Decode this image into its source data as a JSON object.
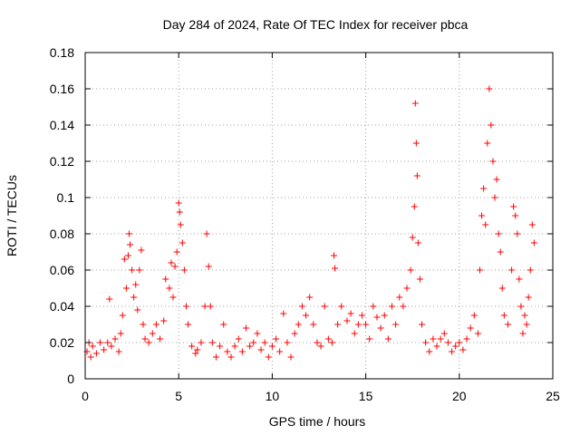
{
  "chart_data": {
    "type": "scatter",
    "title": "Day 284 of 2024, Rate Of TEC Index for receiver pbca",
    "xlabel": "GPS time / hours",
    "ylabel": "ROTI / TECUs",
    "xlim": [
      0,
      25
    ],
    "ylim": [
      0,
      0.18
    ],
    "xticks": [
      0,
      5,
      10,
      15,
      20,
      25
    ],
    "yticks": [
      0,
      0.02,
      0.04,
      0.06,
      0.08,
      0.1,
      0.12,
      0.14,
      0.16,
      0.18
    ],
    "xtick_labels": [
      "0",
      "5",
      "10",
      "15",
      "20",
      "25"
    ],
    "ytick_labels": [
      "0",
      "0.02",
      "0.04",
      "0.06",
      "0.08",
      "0.1",
      "0.12",
      "0.14",
      "0.16",
      "0.18"
    ],
    "grid": true,
    "marker": "+",
    "colors": {
      "points": "#ff0000",
      "grid": "#a0a0a0",
      "axes": "#000000"
    },
    "series": [
      {
        "name": "ROTI",
        "points": [
          [
            0.1,
            0.015
          ],
          [
            0.2,
            0.02
          ],
          [
            0.3,
            0.012
          ],
          [
            0.4,
            0.018
          ],
          [
            0.6,
            0.014
          ],
          [
            0.8,
            0.02
          ],
          [
            1.0,
            0.016
          ],
          [
            1.2,
            0.02
          ],
          [
            1.3,
            0.044
          ],
          [
            1.4,
            0.018
          ],
          [
            1.6,
            0.022
          ],
          [
            1.8,
            0.015
          ],
          [
            1.9,
            0.025
          ],
          [
            2.0,
            0.035
          ],
          [
            2.1,
            0.066
          ],
          [
            2.2,
            0.05
          ],
          [
            2.3,
            0.068
          ],
          [
            2.35,
            0.08
          ],
          [
            2.4,
            0.074
          ],
          [
            2.5,
            0.06
          ],
          [
            2.6,
            0.045
          ],
          [
            2.7,
            0.052
          ],
          [
            2.8,
            0.038
          ],
          [
            2.9,
            0.06
          ],
          [
            3.0,
            0.071
          ],
          [
            3.1,
            0.03
          ],
          [
            3.2,
            0.022
          ],
          [
            3.4,
            0.02
          ],
          [
            3.6,
            0.025
          ],
          [
            3.8,
            0.03
          ],
          [
            4.0,
            0.022
          ],
          [
            4.2,
            0.032
          ],
          [
            4.3,
            0.055
          ],
          [
            4.5,
            0.05
          ],
          [
            4.6,
            0.064
          ],
          [
            4.7,
            0.045
          ],
          [
            4.8,
            0.062
          ],
          [
            4.9,
            0.07
          ],
          [
            5.0,
            0.097
          ],
          [
            5.05,
            0.092
          ],
          [
            5.1,
            0.085
          ],
          [
            5.2,
            0.075
          ],
          [
            5.3,
            0.06
          ],
          [
            5.4,
            0.04
          ],
          [
            5.5,
            0.03
          ],
          [
            5.7,
            0.018
          ],
          [
            5.9,
            0.014
          ],
          [
            6.0,
            0.016
          ],
          [
            6.2,
            0.02
          ],
          [
            6.4,
            0.04
          ],
          [
            6.5,
            0.08
          ],
          [
            6.6,
            0.062
          ],
          [
            6.7,
            0.04
          ],
          [
            6.8,
            0.02
          ],
          [
            7.0,
            0.012
          ],
          [
            7.2,
            0.018
          ],
          [
            7.4,
            0.03
          ],
          [
            7.6,
            0.015
          ],
          [
            7.8,
            0.012
          ],
          [
            8.0,
            0.018
          ],
          [
            8.2,
            0.022
          ],
          [
            8.4,
            0.015
          ],
          [
            8.6,
            0.028
          ],
          [
            8.8,
            0.018
          ],
          [
            9.0,
            0.02
          ],
          [
            9.2,
            0.025
          ],
          [
            9.4,
            0.016
          ],
          [
            9.6,
            0.02
          ],
          [
            9.8,
            0.012
          ],
          [
            10.0,
            0.018
          ],
          [
            10.2,
            0.022
          ],
          [
            10.4,
            0.015
          ],
          [
            10.6,
            0.036
          ],
          [
            10.8,
            0.02
          ],
          [
            11.0,
            0.012
          ],
          [
            11.2,
            0.025
          ],
          [
            11.4,
            0.03
          ],
          [
            11.6,
            0.04
          ],
          [
            11.8,
            0.035
          ],
          [
            12.0,
            0.045
          ],
          [
            12.2,
            0.03
          ],
          [
            12.4,
            0.02
          ],
          [
            12.6,
            0.018
          ],
          [
            12.8,
            0.04
          ],
          [
            13.0,
            0.022
          ],
          [
            13.2,
            0.02
          ],
          [
            13.3,
            0.068
          ],
          [
            13.35,
            0.061
          ],
          [
            13.5,
            0.03
          ],
          [
            13.7,
            0.04
          ],
          [
            14.0,
            0.032
          ],
          [
            14.2,
            0.036
          ],
          [
            14.4,
            0.025
          ],
          [
            14.6,
            0.03
          ],
          [
            14.8,
            0.035
          ],
          [
            15.0,
            0.03
          ],
          [
            15.2,
            0.022
          ],
          [
            15.4,
            0.04
          ],
          [
            15.6,
            0.034
          ],
          [
            15.8,
            0.028
          ],
          [
            16.0,
            0.035
          ],
          [
            16.2,
            0.022
          ],
          [
            16.4,
            0.04
          ],
          [
            16.6,
            0.03
          ],
          [
            16.8,
            0.045
          ],
          [
            17.0,
            0.04
          ],
          [
            17.2,
            0.05
          ],
          [
            17.4,
            0.06
          ],
          [
            17.5,
            0.078
          ],
          [
            17.6,
            0.095
          ],
          [
            17.65,
            0.152
          ],
          [
            17.7,
            0.13
          ],
          [
            17.75,
            0.112
          ],
          [
            17.8,
            0.075
          ],
          [
            17.9,
            0.055
          ],
          [
            18.0,
            0.03
          ],
          [
            18.2,
            0.02
          ],
          [
            18.4,
            0.015
          ],
          [
            18.6,
            0.022
          ],
          [
            18.8,
            0.018
          ],
          [
            19.0,
            0.022
          ],
          [
            19.2,
            0.025
          ],
          [
            19.4,
            0.02
          ],
          [
            19.6,
            0.015
          ],
          [
            19.8,
            0.018
          ],
          [
            20.0,
            0.02
          ],
          [
            20.2,
            0.016
          ],
          [
            20.4,
            0.022
          ],
          [
            20.6,
            0.028
          ],
          [
            20.8,
            0.035
          ],
          [
            21.0,
            0.025
          ],
          [
            21.1,
            0.06
          ],
          [
            21.2,
            0.09
          ],
          [
            21.3,
            0.105
          ],
          [
            21.4,
            0.085
          ],
          [
            21.5,
            0.13
          ],
          [
            21.6,
            0.16
          ],
          [
            21.7,
            0.14
          ],
          [
            21.8,
            0.12
          ],
          [
            21.9,
            0.1
          ],
          [
            22.0,
            0.11
          ],
          [
            22.1,
            0.08
          ],
          [
            22.2,
            0.07
          ],
          [
            22.3,
            0.05
          ],
          [
            22.4,
            0.035
          ],
          [
            22.6,
            0.03
          ],
          [
            22.8,
            0.06
          ],
          [
            22.9,
            0.095
          ],
          [
            23.0,
            0.09
          ],
          [
            23.1,
            0.08
          ],
          [
            23.2,
            0.055
          ],
          [
            23.3,
            0.04
          ],
          [
            23.4,
            0.025
          ],
          [
            23.5,
            0.035
          ],
          [
            23.6,
            0.03
          ],
          [
            23.7,
            0.045
          ],
          [
            23.8,
            0.06
          ],
          [
            23.9,
            0.085
          ],
          [
            24.0,
            0.075
          ]
        ]
      }
    ]
  }
}
